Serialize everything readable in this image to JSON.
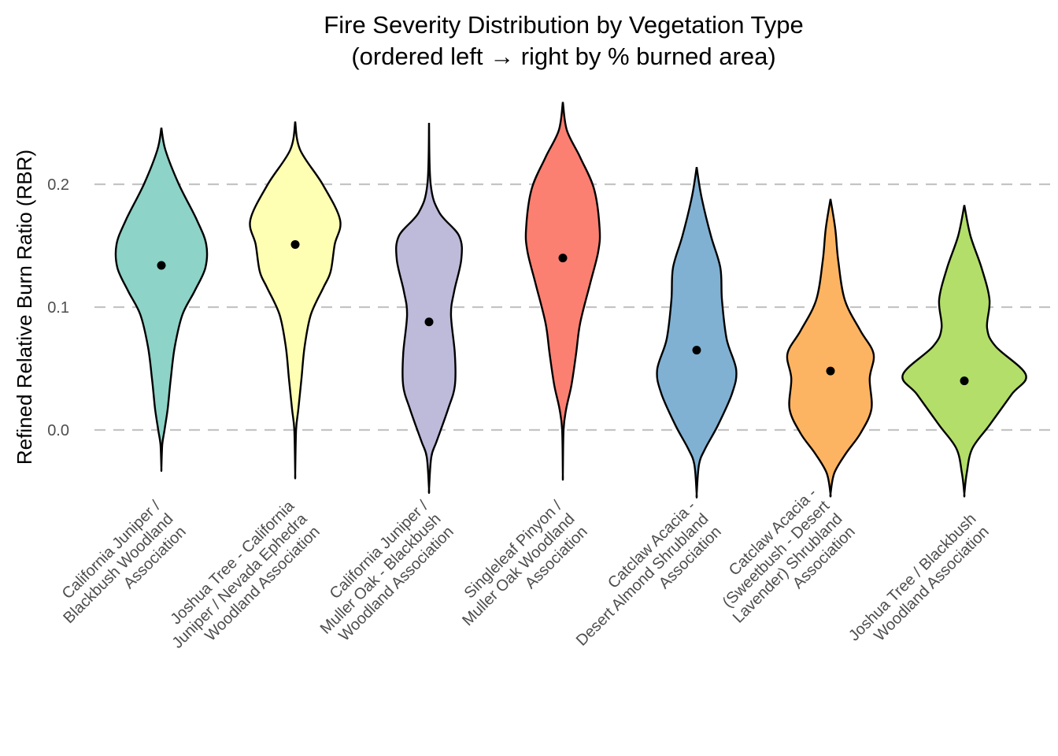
{
  "chart_data": {
    "type": "violin",
    "title": "Fire Severity Distribution by Vegetation Type",
    "subtitle": "(ordered left → right by % burned area)",
    "xlabel": "",
    "ylabel": "Refined Relative Burn Ratio (RBR)",
    "ylim": [
      -0.055,
      0.27
    ],
    "yticks": [
      0.0,
      0.1,
      0.2
    ],
    "ytick_labels": [
      "0.0",
      "0.1",
      "0.2"
    ],
    "grid": "horizontal-dashed",
    "legend": "none",
    "categories": [
      [
        "California Juniper /",
        "Blackbush Woodland",
        "Association"
      ],
      [
        "Joshua Tree - California",
        "Juniper / Nevada Ephedra",
        "Woodland Association"
      ],
      [
        "California Juniper /",
        "Muller Oak - Blackbush",
        "Woodland Association"
      ],
      [
        "Singleleaf Pinyon /",
        "Muller Oak Woodland",
        "Association"
      ],
      [
        "Catclaw Acacia -",
        "Desert Almond Shrubland",
        "Association"
      ],
      [
        "Catclaw Acacia -",
        "(Sweetbush - Desert",
        "Lavender) Shrubland",
        "Association"
      ],
      [
        "Joshua Tree / Blackbush",
        "Woodland Association"
      ]
    ],
    "series": [
      {
        "name": "California Juniper / Blackbush Woodland Association",
        "color": "#8dd3c7",
        "median": 0.134,
        "min": -0.031,
        "max": 0.246,
        "density_profile": [
          [
            0.246,
            0
          ],
          [
            0.228,
            0.09
          ],
          [
            0.2,
            0.39
          ],
          [
            0.171,
            0.79
          ],
          [
            0.151,
            1.0
          ],
          [
            0.132,
            0.98
          ],
          [
            0.113,
            0.74
          ],
          [
            0.094,
            0.47
          ],
          [
            0.068,
            0.3
          ],
          [
            0.042,
            0.21
          ],
          [
            0.017,
            0.14
          ],
          [
            0.0,
            0.07
          ],
          [
            -0.012,
            0.02
          ],
          [
            -0.031,
            0
          ]
        ]
      },
      {
        "name": "Joshua Tree - California Juniper / Nevada Ephedra Woodland Association",
        "color": "#ffffb3",
        "median": 0.151,
        "min": -0.035,
        "max": 0.251,
        "density_profile": [
          [
            0.251,
            0
          ],
          [
            0.228,
            0.11
          ],
          [
            0.2,
            0.61
          ],
          [
            0.171,
            1.0
          ],
          [
            0.151,
            0.88
          ],
          [
            0.129,
            0.79
          ],
          [
            0.116,
            0.63
          ],
          [
            0.094,
            0.35
          ],
          [
            0.068,
            0.21
          ],
          [
            0.042,
            0.14
          ],
          [
            0.017,
            0.07
          ],
          [
            0.0,
            0.02
          ],
          [
            -0.035,
            0
          ]
        ]
      },
      {
        "name": "California Juniper / Muller Oak - Blackbush Woodland Association",
        "color": "#bebada",
        "median": 0.088,
        "min": -0.048,
        "max": 0.25,
        "density_profile": [
          [
            0.25,
            0
          ],
          [
            0.2,
            0.05
          ],
          [
            0.177,
            0.32
          ],
          [
            0.158,
            0.93
          ],
          [
            0.139,
            1.0
          ],
          [
            0.113,
            0.78
          ],
          [
            0.094,
            0.68
          ],
          [
            0.062,
            0.8
          ],
          [
            0.036,
            0.8
          ],
          [
            0.017,
            0.59
          ],
          [
            -0.009,
            0.24
          ],
          [
            -0.022,
            0.07
          ],
          [
            -0.048,
            0
          ]
        ]
      },
      {
        "name": "Singleleaf Pinyon / Muller Oak Woodland Association",
        "color": "#fb8072",
        "median": 0.14,
        "min": -0.036,
        "max": 0.267,
        "density_profile": [
          [
            0.267,
            0
          ],
          [
            0.244,
            0.11
          ],
          [
            0.222,
            0.47
          ],
          [
            0.196,
            0.85
          ],
          [
            0.164,
            1.0
          ],
          [
            0.145,
            0.96
          ],
          [
            0.119,
            0.74
          ],
          [
            0.087,
            0.47
          ],
          [
            0.062,
            0.36
          ],
          [
            0.036,
            0.23
          ],
          [
            0.017,
            0.09
          ],
          [
            0.0,
            0.02
          ],
          [
            -0.036,
            0
          ]
        ]
      },
      {
        "name": "Catclaw Acacia - Desert Almond Shrubland Association",
        "color": "#80b1d3",
        "median": 0.065,
        "min": -0.052,
        "max": 0.214,
        "density_profile": [
          [
            0.214,
            0
          ],
          [
            0.19,
            0.12
          ],
          [
            0.158,
            0.36
          ],
          [
            0.132,
            0.6
          ],
          [
            0.106,
            0.64
          ],
          [
            0.074,
            0.76
          ],
          [
            0.049,
            1.0
          ],
          [
            0.03,
            0.9
          ],
          [
            0.004,
            0.54
          ],
          [
            -0.015,
            0.22
          ],
          [
            -0.028,
            0.06
          ],
          [
            -0.052,
            0
          ]
        ]
      },
      {
        "name": "Catclaw Acacia - (Sweetbush - Desert Lavender) Shrubland Association",
        "color": "#fdb462",
        "median": 0.048,
        "min": -0.052,
        "max": 0.188,
        "density_profile": [
          [
            0.188,
            0
          ],
          [
            0.164,
            0.11
          ],
          [
            0.138,
            0.18
          ],
          [
            0.106,
            0.33
          ],
          [
            0.081,
            0.69
          ],
          [
            0.062,
            1.0
          ],
          [
            0.042,
            0.91
          ],
          [
            0.017,
            0.95
          ],
          [
            -0.003,
            0.69
          ],
          [
            -0.019,
            0.36
          ],
          [
            -0.035,
            0.09
          ],
          [
            -0.052,
            0
          ]
        ]
      },
      {
        "name": "Joshua Tree / Blackbush Woodland Association",
        "color": "#b3de69",
        "median": 0.04,
        "min": -0.052,
        "max": 0.183,
        "density_profile": [
          [
            0.183,
            0
          ],
          [
            0.158,
            0.1
          ],
          [
            0.132,
            0.28
          ],
          [
            0.106,
            0.41
          ],
          [
            0.083,
            0.37
          ],
          [
            0.068,
            0.51
          ],
          [
            0.045,
            1.0
          ],
          [
            0.029,
            0.77
          ],
          [
            0.004,
            0.41
          ],
          [
            -0.015,
            0.13
          ],
          [
            -0.035,
            0.04
          ],
          [
            -0.052,
            0
          ]
        ]
      }
    ]
  }
}
